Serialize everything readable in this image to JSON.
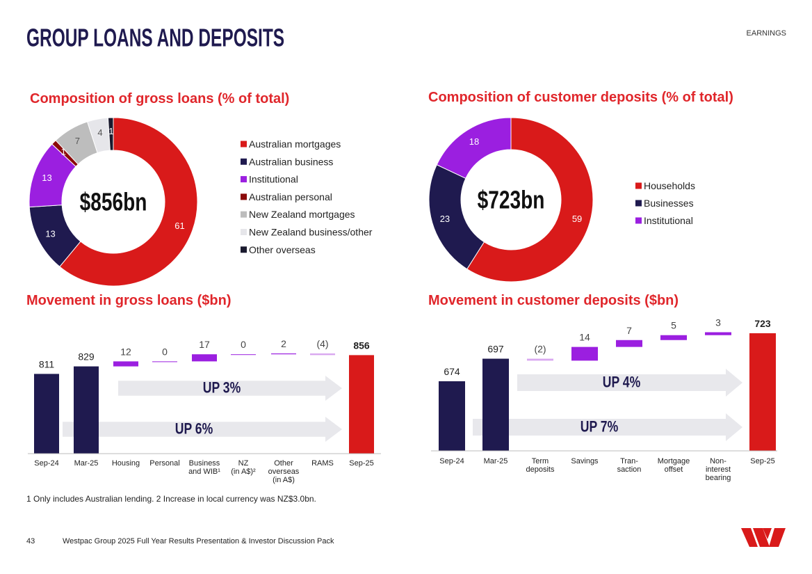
{
  "header": {
    "title": "GROUP LOANS AND DEPOSITS",
    "section": "EARNINGS"
  },
  "footnote": "1 Only includes Australian lending. 2 Increase in local currency was NZ$3.0bn.",
  "footer": {
    "page": "43",
    "text": "Westpac Group 2025 Full Year Results Presentation & Investor Discussion Pack"
  },
  "chart_data": [
    {
      "type": "donut",
      "title": "Composition of gross loans (% of total)",
      "center_label": "$856bn",
      "categories": [
        "Australian mortgages",
        "Australian business",
        "Institutional",
        "Australian personal",
        "New Zealand mortgages",
        "New Zealand business/other",
        "Other overseas"
      ],
      "values": [
        61,
        13,
        13,
        1,
        7,
        4,
        1
      ],
      "colors": [
        "#d91a1a",
        "#1f1a4f",
        "#9b1fe0",
        "#8b0a0a",
        "#bdbdbd",
        "#e6e6ea",
        "#1a1a2e"
      ]
    },
    {
      "type": "donut",
      "title": "Composition of customer deposits (% of total)",
      "center_label": "$723bn",
      "categories": [
        "Households",
        "Businesses",
        "Institutional"
      ],
      "values": [
        59,
        23,
        18
      ],
      "colors": [
        "#d91a1a",
        "#1f1a4f",
        "#9b1fe0"
      ]
    },
    {
      "type": "waterfall",
      "title": "Movement in gross loans ($bn)",
      "categories": [
        "Sep-24",
        "Mar-25",
        "Housing",
        "Personal",
        "Business\nand WIB¹",
        "NZ\n(in A$)²",
        "Other\noverseas\n(in A$)",
        "RAMS",
        "Sep-25"
      ],
      "values": [
        811,
        829,
        12,
        0,
        17,
        0,
        2,
        -4,
        856
      ],
      "value_labels": [
        "811",
        "829",
        "12",
        "0",
        "17",
        "0",
        "2",
        "(4)",
        "856"
      ],
      "measures": [
        "total",
        "total",
        "relative",
        "relative",
        "relative",
        "relative",
        "relative",
        "relative",
        "total"
      ],
      "colors": [
        "#1f1a4f",
        "#1f1a4f",
        "#9b1fe0",
        "#9b1fe0",
        "#9b1fe0",
        "#9b1fe0",
        "#9b1fe0",
        "#d9a8f0",
        "#d91a1a"
      ],
      "ylim": [
        620,
        880
      ],
      "annotations": [
        "UP 3%",
        "UP 6%"
      ]
    },
    {
      "type": "waterfall",
      "title": "Movement in customer deposits ($bn)",
      "categories": [
        "Sep-24",
        "Mar-25",
        "Term\ndeposits",
        "Savings",
        "Tran-\nsaction",
        "Mortgage\noffset",
        "Non-\ninterest\nbearing",
        "Sep-25"
      ],
      "values": [
        674,
        697,
        -2,
        14,
        7,
        5,
        3,
        723
      ],
      "value_labels": [
        "674",
        "697",
        "(2)",
        "14",
        "7",
        "5",
        "3",
        "723"
      ],
      "measures": [
        "total",
        "total",
        "relative",
        "relative",
        "relative",
        "relative",
        "relative",
        "total"
      ],
      "colors": [
        "#1f1a4f",
        "#1f1a4f",
        "#d9a8f0",
        "#9b1fe0",
        "#9b1fe0",
        "#9b1fe0",
        "#9b1fe0",
        "#d91a1a"
      ],
      "ylim": [
        603,
        735
      ],
      "annotations": [
        "UP 4%",
        "UP 7%"
      ]
    }
  ]
}
